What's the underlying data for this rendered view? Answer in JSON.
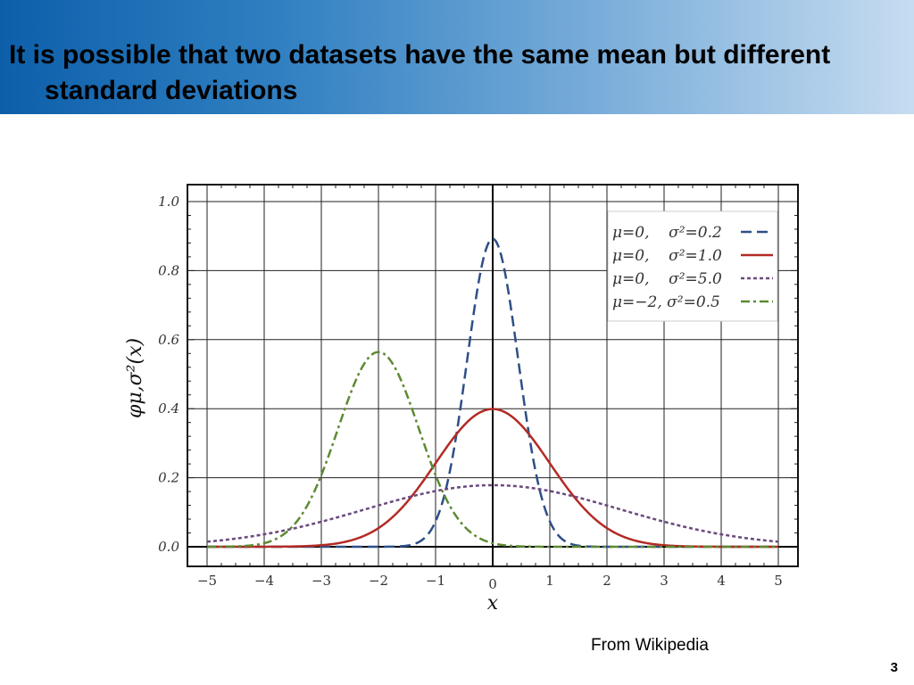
{
  "slide": {
    "title": "It is possible that two datasets have the same mean but different standard deviations",
    "credit": "From Wikipedia",
    "page_number": "3",
    "header_gradient": [
      "#0d5faa",
      "#c6dcf0"
    ]
  },
  "chart_data": {
    "type": "line",
    "xlabel": "x",
    "ylabel": "φμ,σ²(x)",
    "xlim": [
      -5,
      5
    ],
    "ylim": [
      0,
      1.0
    ],
    "x_ticks": [
      "−5",
      "−4",
      "−3",
      "−2",
      "−1",
      "0",
      "1",
      "2",
      "3",
      "4",
      "5"
    ],
    "y_ticks": [
      "0.0",
      "0.2",
      "0.4",
      "0.6",
      "0.8",
      "1.0"
    ],
    "grid": true,
    "legend_position": "top-right",
    "series": [
      {
        "name": "μ=0,    σ²=0.2",
        "mu": 0,
        "variance": 0.2,
        "color": "#2e4f86",
        "style": "dashed"
      },
      {
        "name": "μ=0,    σ²=1.0",
        "mu": 0,
        "variance": 1.0,
        "color": "#b22b25",
        "style": "solid"
      },
      {
        "name": "μ=0,    σ²=5.0",
        "mu": 0,
        "variance": 5.0,
        "color": "#6a4a7e",
        "style": "dotted"
      },
      {
        "name": "μ=−2, σ²=0.5",
        "mu": -2,
        "variance": 0.5,
        "color": "#5d8a32",
        "style": "dashdot"
      }
    ]
  }
}
